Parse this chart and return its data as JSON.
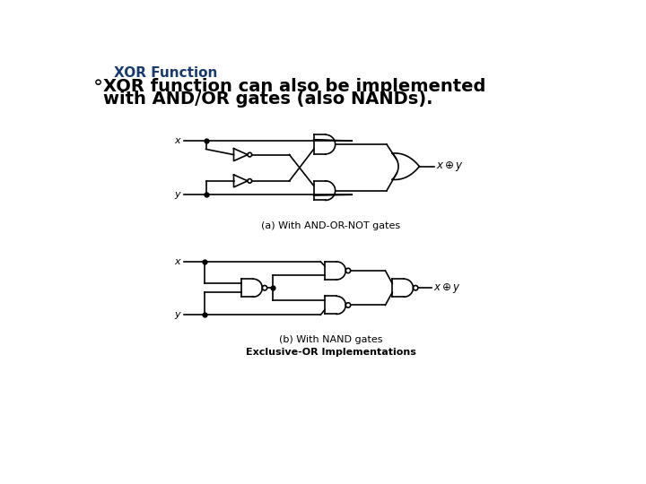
{
  "title": "XOR Function",
  "bullet_line1": "XOR function can also be implemented",
  "bullet_line2": "with AND/OR gates (also NANDs).",
  "caption_a": "(a) With AND-OR-NOT gates",
  "caption_b": "(b) With NAND gates",
  "footer": "Exclusive-OR Implementations",
  "bg_color": "#ffffff",
  "title_color": "#1a3a6b",
  "text_color": "#000000",
  "line_color": "#000000",
  "title_fontsize": 11,
  "bullet_fontsize": 14,
  "caption_fontsize": 8,
  "footer_fontsize": 8
}
